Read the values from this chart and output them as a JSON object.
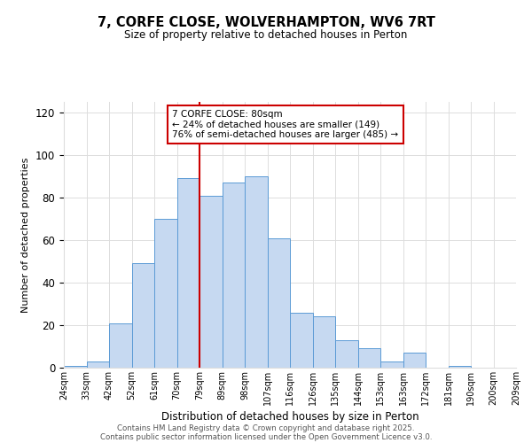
{
  "title": "7, CORFE CLOSE, WOLVERHAMPTON, WV6 7RT",
  "subtitle": "Size of property relative to detached houses in Perton",
  "xlabel": "Distribution of detached houses by size in Perton",
  "ylabel": "Number of detached properties",
  "bar_color": "#c6d9f1",
  "bar_edge_color": "#5b9bd5",
  "bins": [
    "24sqm",
    "33sqm",
    "42sqm",
    "52sqm",
    "61sqm",
    "70sqm",
    "79sqm",
    "89sqm",
    "98sqm",
    "107sqm",
    "116sqm",
    "126sqm",
    "135sqm",
    "144sqm",
    "153sqm",
    "163sqm",
    "172sqm",
    "181sqm",
    "190sqm",
    "200sqm",
    "209sqm"
  ],
  "values": [
    1,
    3,
    21,
    49,
    70,
    89,
    81,
    87,
    90,
    61,
    26,
    24,
    13,
    9,
    3,
    7,
    0,
    1,
    0,
    0
  ],
  "vline_x": 6,
  "vline_color": "#cc0000",
  "ylim": [
    0,
    125
  ],
  "yticks": [
    0,
    20,
    40,
    60,
    80,
    100,
    120
  ],
  "annotation_title": "7 CORFE CLOSE: 80sqm",
  "annotation_line1": "← 24% of detached houses are smaller (149)",
  "annotation_line2": "76% of semi-detached houses are larger (485) →",
  "annotation_box_color": "#ffffff",
  "annotation_box_edge": "#cc0000",
  "footer1": "Contains HM Land Registry data © Crown copyright and database right 2025.",
  "footer2": "Contains public sector information licensed under the Open Government Licence v3.0.",
  "background_color": "#ffffff",
  "grid_color": "#dddddd"
}
